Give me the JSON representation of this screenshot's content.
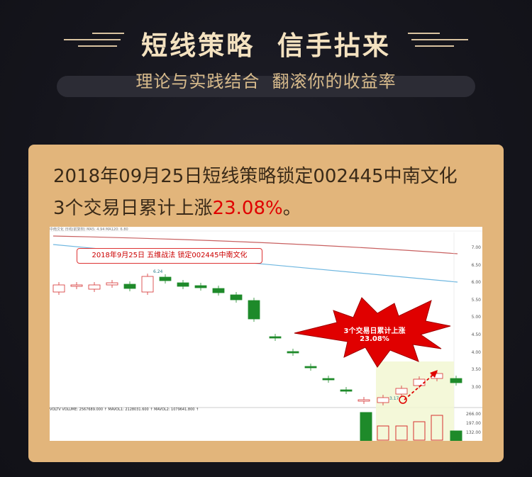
{
  "header": {
    "title": "短线策略  信手拈来",
    "subtitle": "理论与实践结合  翻滚你的收益率"
  },
  "card": {
    "line1": "2018年09月25日短线策略锁定002445中南文化",
    "line2_prefix": "3个交易日累计上涨",
    "line2_percent": "23.08%",
    "line2_suffix": "。"
  },
  "chart": {
    "callout": "2018年9月25日 五维战法 锁定002445中南文化",
    "star_label": "3个交易日累计上涨23.08%",
    "high_label": "6.24",
    "low_label": "3.17",
    "y_ticks": [
      "7.00",
      "6.50",
      "6.00",
      "5.50",
      "5.00",
      "4.50",
      "4.00",
      "3.50",
      "3.00"
    ],
    "vol_ticks": [
      "266.00",
      "197.00",
      "132.00"
    ],
    "vol_header": "VOLTV  VOLUME: 2567689.000 ↑  MAVOL1: 2128031.600 ↑  MAVOL2: 1079641.800 ↑",
    "top_header": "中南文化  日线(前复权)  MA5: 4.94  MA120: 6.80",
    "colors": {
      "up": "#d63030",
      "down": "#1e8a2a",
      "accent": "#e00000",
      "ma_red": "#c86060",
      "ma_blue": "#6fb7e0"
    }
  }
}
